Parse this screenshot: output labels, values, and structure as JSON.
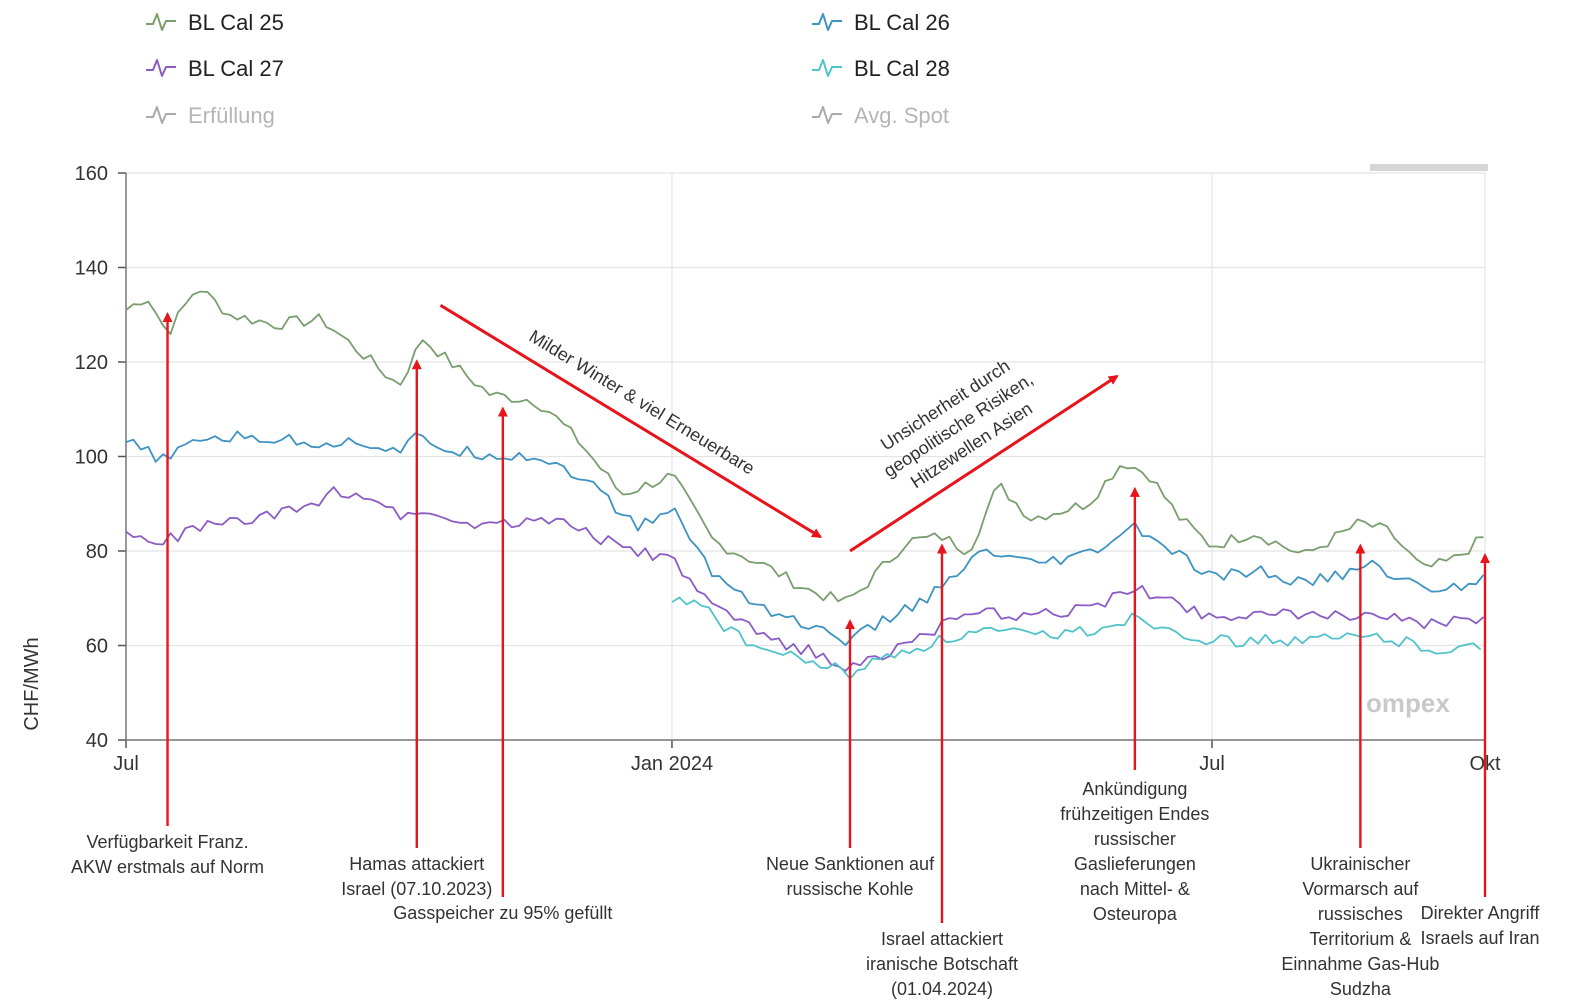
{
  "chart_data": {
    "type": "line",
    "ylabel": "CHF/MWh",
    "ylim": [
      40,
      160
    ],
    "yticks": [
      40,
      60,
      80,
      100,
      120,
      140,
      160
    ],
    "x_range": [
      "2023-07-01",
      "2024-10-01"
    ],
    "xticks": [
      {
        "date": "2023-07-01",
        "label": "Jul"
      },
      {
        "date": "2024-01-01",
        "label": "Jan 2024"
      },
      {
        "date": "2024-07-01",
        "label": "Jul"
      },
      {
        "date": "2024-10-01",
        "label": "Okt"
      }
    ],
    "grid": true,
    "legend_position": "top",
    "legend": [
      {
        "label": "BL Cal 25",
        "color": "#7a9e6e",
        "active": true
      },
      {
        "label": "BL Cal 26",
        "color": "#3d93c2",
        "active": true
      },
      {
        "label": "BL Cal 27",
        "color": "#8a5cc4",
        "active": true
      },
      {
        "label": "BL Cal 28",
        "color": "#4fc3c9",
        "active": true
      },
      {
        "label": "Erfüllung",
        "color": "#b0b0b0",
        "active": false
      },
      {
        "label": "Avg. Spot",
        "color": "#b0b0b0",
        "active": false
      }
    ],
    "series": [
      {
        "name": "BL Cal 25",
        "color": "#7a9e6e",
        "points": [
          [
            "2023-07-01",
            131
          ],
          [
            "2023-07-08",
            134
          ],
          [
            "2023-07-15",
            126
          ],
          [
            "2023-07-25",
            136
          ],
          [
            "2023-08-05",
            130
          ],
          [
            "2023-08-20",
            128
          ],
          [
            "2023-09-05",
            129
          ],
          [
            "2023-09-20",
            121
          ],
          [
            "2023-10-01",
            115
          ],
          [
            "2023-10-09",
            125
          ],
          [
            "2023-10-20",
            119
          ],
          [
            "2023-11-01",
            113
          ],
          [
            "2023-11-15",
            112
          ],
          [
            "2023-11-20",
            110
          ],
          [
            "2023-12-01",
            103
          ],
          [
            "2023-12-15",
            92
          ],
          [
            "2024-01-01",
            96
          ],
          [
            "2024-01-15",
            82
          ],
          [
            "2024-02-01",
            77
          ],
          [
            "2024-02-15",
            72
          ],
          [
            "2024-02-28",
            69
          ],
          [
            "2024-03-05",
            72
          ],
          [
            "2024-03-20",
            82
          ],
          [
            "2024-04-01",
            83
          ],
          [
            "2024-04-10",
            80
          ],
          [
            "2024-04-20",
            94
          ],
          [
            "2024-05-01",
            87
          ],
          [
            "2024-05-20",
            90
          ],
          [
            "2024-06-01",
            99
          ],
          [
            "2024-06-10",
            96
          ],
          [
            "2024-06-20",
            87
          ],
          [
            "2024-07-01",
            81
          ],
          [
            "2024-07-15",
            84
          ],
          [
            "2024-08-01",
            79
          ],
          [
            "2024-08-20",
            86
          ],
          [
            "2024-08-30",
            84
          ],
          [
            "2024-09-10",
            76
          ],
          [
            "2024-09-20",
            78
          ],
          [
            "2024-10-01",
            83
          ]
        ]
      },
      {
        "name": "BL Cal 26",
        "color": "#3d93c2",
        "points": [
          [
            "2023-07-01",
            103
          ],
          [
            "2023-07-15",
            99
          ],
          [
            "2023-07-25",
            104
          ],
          [
            "2023-08-15",
            104
          ],
          [
            "2023-09-01",
            103
          ],
          [
            "2023-09-20",
            103
          ],
          [
            "2023-10-01",
            101
          ],
          [
            "2023-10-07",
            104
          ],
          [
            "2023-10-20",
            101
          ],
          [
            "2023-11-15",
            100
          ],
          [
            "2023-11-25",
            98
          ],
          [
            "2023-12-05",
            94
          ],
          [
            "2023-12-20",
            85
          ],
          [
            "2024-01-01",
            89
          ],
          [
            "2024-01-15",
            75
          ],
          [
            "2024-02-01",
            68
          ],
          [
            "2024-02-20",
            63
          ],
          [
            "2024-03-01",
            61
          ],
          [
            "2024-03-15",
            66
          ],
          [
            "2024-04-01",
            72
          ],
          [
            "2024-04-15",
            80
          ],
          [
            "2024-05-01",
            77
          ],
          [
            "2024-05-20",
            79
          ],
          [
            "2024-06-05",
            85
          ],
          [
            "2024-06-20",
            79
          ],
          [
            "2024-07-01",
            74
          ],
          [
            "2024-07-15",
            76
          ],
          [
            "2024-08-01",
            73
          ],
          [
            "2024-08-25",
            77
          ],
          [
            "2024-09-10",
            72
          ],
          [
            "2024-09-20",
            72
          ],
          [
            "2024-10-01",
            75
          ]
        ]
      },
      {
        "name": "BL Cal 27",
        "color": "#8a5cc4",
        "points": [
          [
            "2023-07-01",
            84
          ],
          [
            "2023-07-10",
            81
          ],
          [
            "2023-07-25",
            85
          ],
          [
            "2023-08-15",
            87
          ],
          [
            "2023-09-01",
            89
          ],
          [
            "2023-09-10",
            93
          ],
          [
            "2023-09-25",
            91
          ],
          [
            "2023-10-01",
            87
          ],
          [
            "2023-10-07",
            89
          ],
          [
            "2023-10-20",
            86
          ],
          [
            "2023-11-15",
            86
          ],
          [
            "2023-11-25",
            87
          ],
          [
            "2023-12-10",
            82
          ],
          [
            "2023-12-25",
            79
          ],
          [
            "2024-01-01",
            78
          ],
          [
            "2024-01-15",
            68
          ],
          [
            "2024-02-01",
            62
          ],
          [
            "2024-02-20",
            58
          ],
          [
            "2024-03-01",
            55
          ],
          [
            "2024-03-15",
            59
          ],
          [
            "2024-04-01",
            64
          ],
          [
            "2024-04-15",
            67
          ],
          [
            "2024-05-01",
            66
          ],
          [
            "2024-05-20",
            68
          ],
          [
            "2024-06-05",
            72
          ],
          [
            "2024-06-20",
            69
          ],
          [
            "2024-07-01",
            66
          ],
          [
            "2024-07-15",
            67
          ],
          [
            "2024-08-01",
            66
          ],
          [
            "2024-08-25",
            67
          ],
          [
            "2024-09-10",
            64
          ],
          [
            "2024-09-20",
            65
          ],
          [
            "2024-10-01",
            66
          ]
        ]
      },
      {
        "name": "BL Cal 28",
        "color": "#4fc3c9",
        "points": [
          [
            "2024-01-01",
            69
          ],
          [
            "2024-01-10",
            70
          ],
          [
            "2024-01-20",
            63
          ],
          [
            "2024-02-01",
            59
          ],
          [
            "2024-02-20",
            56
          ],
          [
            "2024-03-01",
            54
          ],
          [
            "2024-03-15",
            58
          ],
          [
            "2024-04-01",
            61
          ],
          [
            "2024-04-15",
            63
          ],
          [
            "2024-05-01",
            62
          ],
          [
            "2024-05-20",
            63
          ],
          [
            "2024-06-05",
            66
          ],
          [
            "2024-06-20",
            63
          ],
          [
            "2024-07-01",
            61
          ],
          [
            "2024-07-15",
            61
          ],
          [
            "2024-08-01",
            61
          ],
          [
            "2024-08-25",
            62
          ],
          [
            "2024-09-10",
            60
          ],
          [
            "2024-09-20",
            59
          ],
          [
            "2024-10-01",
            60
          ]
        ]
      }
    ],
    "annotations": [
      {
        "date": "2023-07-15",
        "value": 131,
        "lines": [
          "Verfügbarkeit Franz.",
          "AKW erstmals auf Norm"
        ],
        "text_level": 1
      },
      {
        "date": "2023-10-07",
        "value": 121,
        "lines": [
          "Hamas attackiert",
          "Israel (07.10.2023)"
        ],
        "text_level": 2
      },
      {
        "date": "2023-11-05",
        "value": 111,
        "lines": [
          "Gasspeicher zu 95% gefüllt"
        ],
        "text_level": 3
      },
      {
        "date": "2024-03-01",
        "value": 66,
        "lines": [
          "Neue Sanktionen auf",
          "russische Kohle"
        ],
        "text_level": 2
      },
      {
        "date": "2024-04-01",
        "value": 82,
        "lines": [
          "Israel attackiert",
          "iranische Botschaft",
          "(01.04.2024)"
        ],
        "text_level": 4
      },
      {
        "date": "2024-06-05",
        "value": 94,
        "lines": [
          "Ankündigung",
          "frühzeitigen Endes",
          "russischer",
          "Gaslieferungen",
          "nach Mittel- &",
          "Osteuropa"
        ],
        "text_level": 0
      },
      {
        "date": "2024-08-20",
        "value": 82,
        "lines": [
          "Ukrainischer",
          "Vormarsch auf",
          "russisches",
          "Territorium &",
          "Einnahme Gas-Hub",
          "Sudzha"
        ],
        "text_level": 2
      },
      {
        "date": "2024-10-01",
        "value": 80,
        "lines": [
          "Direkter Angriff",
          "Israels auf Iran"
        ],
        "text_level": 3
      }
    ],
    "trend_arrows": [
      {
        "from": [
          "2023-10-15",
          132
        ],
        "to": [
          "2024-02-20",
          83
        ],
        "label": "Milder Winter & viel Erneuerbare"
      },
      {
        "from": [
          "2024-03-01",
          80
        ],
        "to": [
          "2024-05-30",
          117
        ],
        "label_lines": [
          "Unsicherheit durch",
          "geopolitische Risiken,",
          "Hitzewellen Asien"
        ]
      }
    ],
    "watermark": "ompex"
  }
}
